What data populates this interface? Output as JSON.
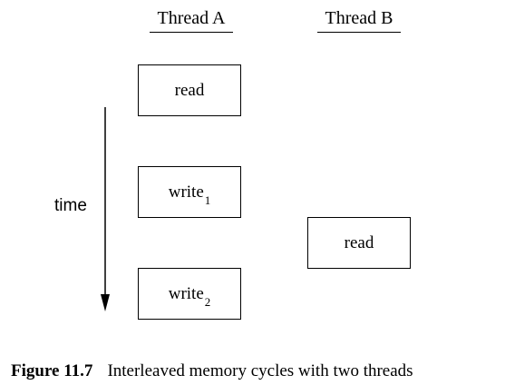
{
  "headers": {
    "thread_a": "Thread A",
    "thread_b": "Thread B"
  },
  "thread_a_ops": [
    {
      "label": "read",
      "sub": ""
    },
    {
      "label": "write",
      "sub": "1"
    },
    {
      "label": "write",
      "sub": "2"
    }
  ],
  "thread_b_ops": [
    {
      "label": "read",
      "sub": ""
    }
  ],
  "axis": {
    "label": "time"
  },
  "caption": {
    "number": "Figure 11.7",
    "text": "Interleaved memory cycles with two threads"
  }
}
